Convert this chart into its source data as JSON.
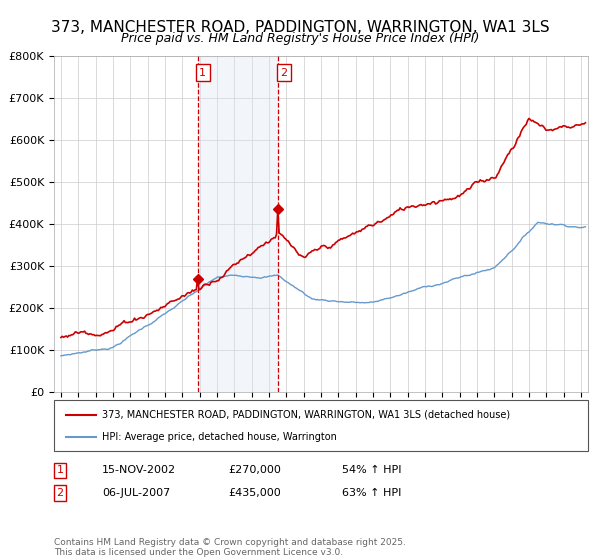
{
  "title": "373, MANCHESTER ROAD, PADDINGTON, WARRINGTON, WA1 3LS",
  "subtitle": "Price paid vs. HM Land Registry's House Price Index (HPI)",
  "legend_line1": "373, MANCHESTER ROAD, PADDINGTON, WARRINGTON, WA1 3LS (detached house)",
  "legend_line2": "HPI: Average price, detached house, Warrington",
  "sale1_date": "15-NOV-2002",
  "sale1_price": 270000,
  "sale1_pct": "54% ↑ HPI",
  "sale1_x": 2002.88,
  "sale2_date": "06-JUL-2007",
  "sale2_price": 435000,
  "sale2_pct": "63% ↑ HPI",
  "sale2_x": 2007.54,
  "copyright": "Contains HM Land Registry data © Crown copyright and database right 2025.\nThis data is licensed under the Open Government Licence v3.0.",
  "red_color": "#cc0000",
  "blue_color": "#6699cc",
  "vline_color": "#cc0000",
  "shade_color": "#dce8f5",
  "ylim": [
    0,
    800000
  ],
  "xlim_left": 1994.6,
  "xlim_right": 2025.4,
  "title_fontsize": 11,
  "subtitle_fontsize": 9
}
